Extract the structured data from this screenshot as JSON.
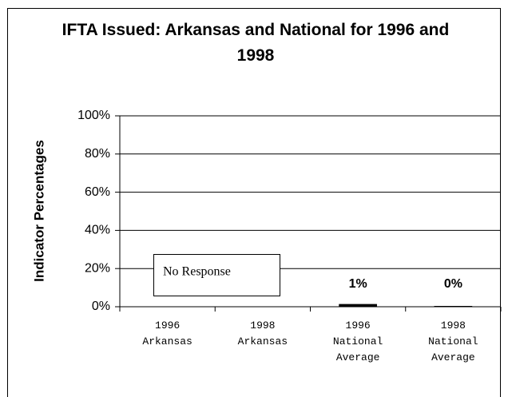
{
  "chart_data": {
    "type": "bar",
    "title": "IFTA Issued: Arkansas and National for 1996 and 1998",
    "y_label": "Indicator Percentages",
    "categories": [
      "1996 Arkansas",
      "1998 Arkansas",
      "1996 National Average",
      "1998 National Average"
    ],
    "values": [
      null,
      null,
      1,
      0
    ],
    "value_labels": [
      null,
      null,
      "1%",
      "0%"
    ],
    "color": "#000000",
    "ylim": [
      0,
      100
    ],
    "yticks": [
      {
        "value": 0,
        "label": "0%"
      },
      {
        "value": 20,
        "label": "20%"
      },
      {
        "value": 40,
        "label": "40%"
      },
      {
        "value": 60,
        "label": "60%"
      },
      {
        "value": 80,
        "label": "80%"
      },
      {
        "value": 100,
        "label": "100%"
      }
    ],
    "grid": true,
    "annotations": [
      {
        "text": "No Response"
      }
    ]
  }
}
